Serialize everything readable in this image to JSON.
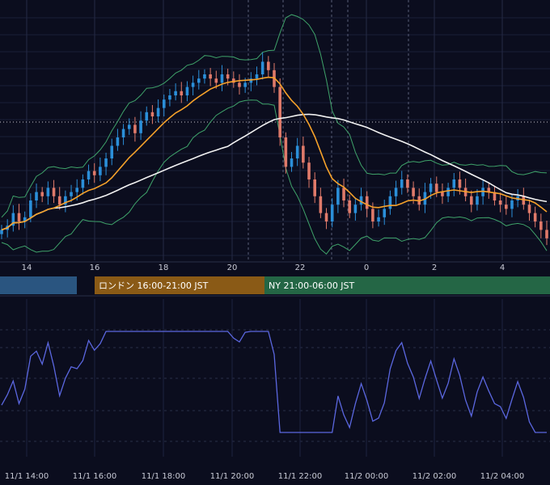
{
  "chart_data": [
    {
      "type": "candlestick",
      "panel": "price",
      "overlays": [
        "bollinger-bands",
        "moving-average-orange",
        "moving-average-white"
      ],
      "x_tick_labels": [
        "14",
        "16",
        "18",
        "20",
        "22",
        "0",
        "2",
        "4"
      ],
      "sessions": [
        {
          "label": "",
          "color": "#2a5580"
        },
        {
          "label": "ロンドン 16:00-21:00 JST",
          "color": "#8a5a16"
        },
        {
          "label": "NY 21:00-06:00 JST",
          "color": "#246645"
        }
      ],
      "candle_close_normalized": [
        0.78,
        0.79,
        0.82,
        0.8,
        0.81,
        0.85,
        0.87,
        0.86,
        0.88,
        0.86,
        0.84,
        0.86,
        0.87,
        0.88,
        0.9,
        0.92,
        0.91,
        0.93,
        0.95,
        0.98,
        1.0,
        1.02,
        1.03,
        1.01,
        1.04,
        1.06,
        1.05,
        1.07,
        1.09,
        1.1,
        1.11,
        1.1,
        1.12,
        1.13,
        1.14,
        1.15,
        1.14,
        1.13,
        1.15,
        1.14,
        1.13,
        1.12,
        1.13,
        1.14,
        1.15,
        1.18,
        1.16,
        1.12,
        1.0,
        0.93,
        0.95,
        0.98,
        0.94,
        0.9,
        0.86,
        0.82,
        0.8,
        0.84,
        0.88,
        0.85,
        0.82,
        0.84,
        0.86,
        0.83,
        0.8,
        0.81,
        0.83,
        0.86,
        0.88,
        0.9,
        0.88,
        0.86,
        0.84,
        0.87,
        0.89,
        0.87,
        0.86,
        0.88,
        0.9,
        0.88,
        0.86,
        0.84,
        0.86,
        0.88,
        0.87,
        0.85,
        0.84,
        0.83,
        0.85,
        0.86,
        0.84,
        0.82,
        0.8,
        0.78,
        0.76
      ],
      "colors": {
        "up": "#2b8fd9",
        "down": "#e07a6a",
        "bollinger": "#3fa36a",
        "ma_short": "#f5a12a",
        "ma_long": "#f2f2f2"
      }
    },
    {
      "type": "line",
      "panel": "oscillator",
      "x_tick_labels": [
        "11/1 14:00",
        "11/1 16:00",
        "11/1 18:00",
        "11/1 20:00",
        "11/1 22:00",
        "11/2 00:00",
        "11/2 02:00",
        "11/2 04:00"
      ],
      "colors": {
        "line": "#5b67e0"
      }
    }
  ]
}
